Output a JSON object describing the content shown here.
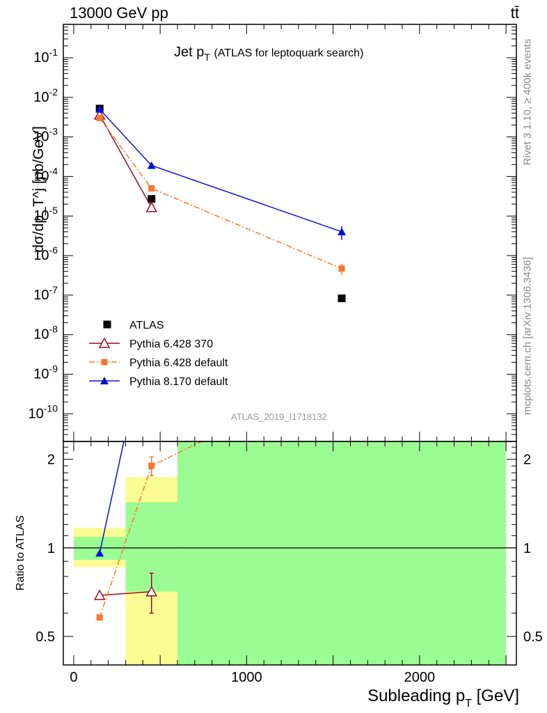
{
  "header": {
    "energy_label": "13000 GeV pp",
    "process_label": "tt̄"
  },
  "plot": {
    "title_main": "Jet p",
    "title_sub": "T",
    "title_paren": "(ATLAS for leptoquark search)",
    "ylabel": "dσ/dp_T^j [pb/GeV]",
    "analysis_id": "ATLAS_2019_I1718132",
    "rivet_label": "Rivet 3.1.10, ≥ 400k events",
    "mcplots_label": "mcplots.cern.ch [arXiv:1306.3436]"
  },
  "ratio": {
    "ylabel": "Ratio to ATLAS"
  },
  "xaxis": {
    "label_main": "Subleading p",
    "label_sub": "T",
    "label_unit": "[GeV]"
  },
  "colors": {
    "data": "#000000",
    "py6_370": "#9b0a1e",
    "py6_default": "#f5792b",
    "py8_default": "#0a10d8",
    "band_green": "#9cfc94",
    "band_yellow": "#fcfc94",
    "analysis_text": "#999999"
  },
  "chart_data": {
    "type": "line",
    "xlabel": "Subleading p_T^j [GeV]",
    "ylabel": "dσ/dp_T^j [pb/GeV]",
    "x_range": [
      -60,
      2560
    ],
    "y_scale": "log",
    "y_range": [
      2e-11,
      0.7
    ],
    "y_ticks": [
      "10^-10",
      "10^-9",
      "10^-8",
      "10^-7",
      "10^-6",
      "10^-5",
      "10^-4",
      "10^-3",
      "10^-2",
      "10^-1"
    ],
    "x_ticks": [
      0,
      1000,
      2000
    ],
    "bins": [
      [
        0,
        300
      ],
      [
        300,
        600
      ],
      [
        600,
        2500
      ]
    ],
    "legend_position": "lower-left",
    "series": [
      {
        "name": "ATLAS",
        "marker": "square",
        "x": [
          150,
          450,
          1550
        ],
        "y": [
          0.0052,
          2.7e-05,
          8.3e-08
        ],
        "yerr": [
          0.0001,
          1e-06,
          3e-09
        ]
      },
      {
        "name": "Pythia 6.428 370",
        "marker": "open-triangle",
        "x": [
          150,
          450
        ],
        "y": [
          0.0036,
          1.65e-05
        ],
        "yerr": [
          0.0001,
          2.5e-06
        ]
      },
      {
        "name": "Pythia 6.428 default",
        "marker": "small-square",
        "x": [
          150,
          450,
          1550
        ],
        "y": [
          0.003,
          5e-05,
          4.7e-07
        ],
        "yerr": [
          0.0001,
          4e-06,
          1.5e-07
        ]
      },
      {
        "name": "Pythia 8.170 default",
        "marker": "triangle",
        "x": [
          150,
          450,
          1550
        ],
        "y": [
          0.005,
          0.00019,
          4e-06
        ],
        "yerr": [
          0.0001,
          8e-06,
          1.5e-06
        ]
      }
    ],
    "ratio": {
      "ylabel": "Ratio to ATLAS",
      "y_scale": "log",
      "y_range": [
        0.4,
        2.3
      ],
      "y_ticks": [
        0.5,
        1,
        2
      ],
      "bands": [
        {
          "bin": [
            0,
            300
          ],
          "green": [
            0.91,
            1.09
          ],
          "yellow": [
            0.86,
            1.17
          ]
        },
        {
          "bin": [
            300,
            600
          ],
          "green": [
            0.71,
            1.43
          ],
          "yellow": [
            0.4,
            1.74
          ]
        },
        {
          "bin": [
            600,
            2500
          ],
          "green": [
            0.4,
            2.3
          ],
          "yellow": [
            0.4,
            2.3
          ]
        }
      ],
      "series": [
        {
          "name": "Pythia 6.428 370",
          "x": [
            150,
            450
          ],
          "y": [
            0.69,
            0.71
          ],
          "yerr": [
            0.0,
            0.11
          ]
        },
        {
          "name": "Pythia 6.428 default",
          "x": [
            150,
            450,
            740
          ],
          "y": [
            0.58,
            1.9,
            2.3
          ],
          "yerr": [
            0.0,
            0.14,
            0.0
          ]
        },
        {
          "name": "Pythia 8.170 default",
          "x": [
            150,
            290
          ],
          "y": [
            0.96,
            2.3
          ],
          "yerr": [
            0.0,
            0.0
          ]
        }
      ]
    }
  }
}
